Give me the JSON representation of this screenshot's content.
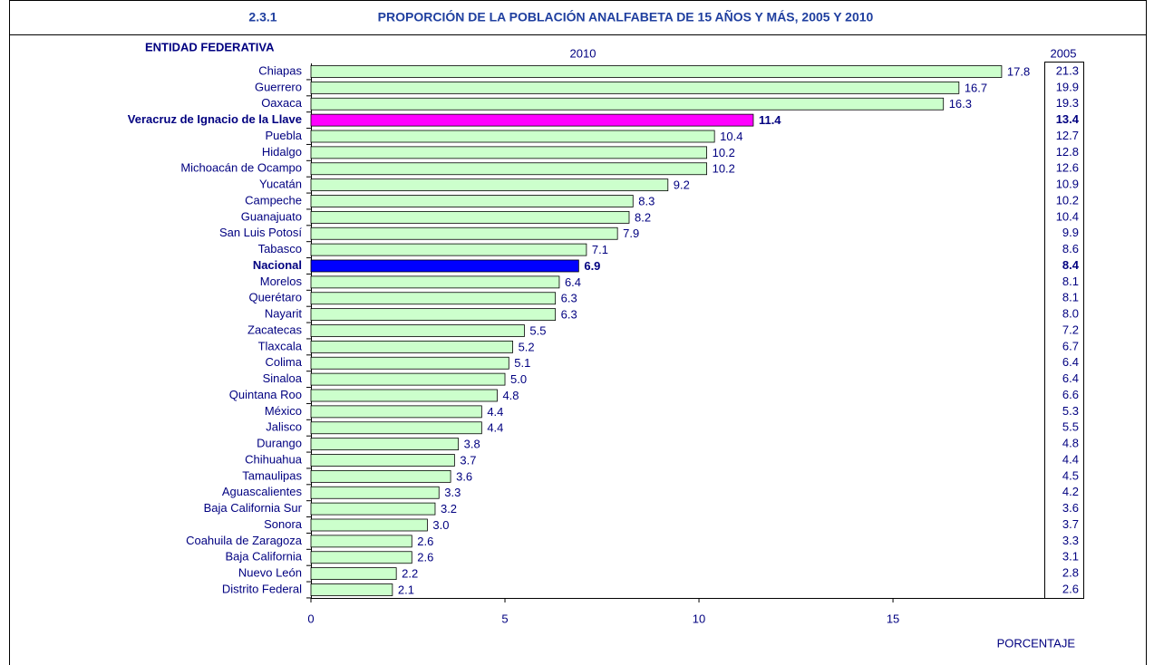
{
  "chart_data": {
    "type": "barh",
    "number": "2.3.1",
    "title": "PROPORCIÓN DE LA POBLACIÓN ANALFABETA DE 15 AÑOS Y MÁS, 2005 Y 2010",
    "ylabel": "ENTIDAD FEDERATIVA",
    "xlabel": "PORCENTAJE",
    "categories": [
      "Chiapas",
      "Guerrero",
      "Oaxaca",
      "Veracruz de Ignacio de la Llave",
      "Puebla",
      "Hidalgo",
      "Michoacán de Ocampo",
      "Yucatán",
      "Campeche",
      "Guanajuato",
      "San Luis Potosí",
      "Tabasco",
      "Nacional",
      "Morelos",
      "Querétaro",
      "Nayarit",
      "Zacatecas",
      "Tlaxcala",
      "Colima",
      "Sinaloa",
      "Quintana Roo",
      "México",
      "Jalisco",
      "Durango",
      "Chihuahua",
      "Tamaulipas",
      "Aguascalientes",
      "Baja California Sur",
      "Sonora",
      "Coahuila de Zaragoza",
      "Baja California",
      "Nuevo León",
      "Distrito Federal"
    ],
    "color": "#ccffcc",
    "colors": [
      "#ccffcc",
      "#ccffcc",
      "#ccffcc",
      "#ff00ff",
      "#ccffcc",
      "#ccffcc",
      "#ccffcc",
      "#ccffcc",
      "#ccffcc",
      "#ccffcc",
      "#ccffcc",
      "#ccffcc",
      "#0000ff",
      "#ccffcc",
      "#ccffcc",
      "#ccffcc",
      "#ccffcc",
      "#ccffcc",
      "#ccffcc",
      "#ccffcc",
      "#ccffcc",
      "#ccffcc",
      "#ccffcc",
      "#ccffcc",
      "#ccffcc",
      "#ccffcc",
      "#ccffcc",
      "#ccffcc",
      "#ccffcc",
      "#ccffcc",
      "#ccffcc",
      "#ccffcc",
      "#ccffcc"
    ],
    "series": [
      {
        "name": "2010",
        "values": [
          17.8,
          16.7,
          16.3,
          11.4,
          10.4,
          10.2,
          10.2,
          9.2,
          8.3,
          8.2,
          7.9,
          7.1,
          6.9,
          6.4,
          6.3,
          6.3,
          5.5,
          5.2,
          5.1,
          5.0,
          4.8,
          4.4,
          4.4,
          3.8,
          3.7,
          3.6,
          3.3,
          3.2,
          3.0,
          2.6,
          2.6,
          2.2,
          2.1
        ],
        "value_labels": [
          "17.8",
          "16.7",
          "16.3",
          "11.4",
          "10.4",
          "10.2",
          "10.2",
          "9.2",
          "8.3",
          "8.2",
          "7.9",
          "7.1",
          "6.9",
          "6.4",
          "6.3",
          "6.3",
          "5.5",
          "5.2",
          "5.1",
          "5.0",
          "4.8",
          "4.4",
          "4.4",
          "3.8",
          "3.7",
          "3.6",
          "3.3",
          "3.2",
          "3.0",
          "2.6",
          "2.6",
          "2.2",
          "2.1"
        ]
      },
      {
        "name": "2005",
        "values": [
          21.3,
          19.9,
          19.3,
          13.4,
          12.7,
          12.8,
          12.6,
          10.9,
          10.2,
          10.4,
          9.9,
          8.6,
          8.4,
          8.1,
          8.1,
          8.0,
          7.2,
          6.7,
          6.4,
          6.4,
          6.6,
          5.3,
          5.5,
          4.8,
          4.4,
          4.5,
          4.2,
          3.6,
          3.7,
          3.3,
          3.1,
          2.8,
          2.6
        ],
        "value_labels": [
          "21.3",
          "19.9",
          "19.3",
          "13.4",
          "12.7",
          "12.8",
          "12.6",
          "10.9",
          "10.2",
          "10.4",
          "9.9",
          "8.6",
          "8.4",
          "8.1",
          "8.1",
          "8.0",
          "7.2",
          "6.7",
          "6.4",
          "6.4",
          "6.6",
          "5.3",
          "5.5",
          "4.8",
          "4.4",
          "4.5",
          "4.2",
          "3.6",
          "3.7",
          "3.3",
          "3.1",
          "2.8",
          "2.6"
        ]
      }
    ],
    "xlim": [
      0,
      18.9
    ],
    "xticks": [
      0,
      5,
      10,
      15
    ]
  }
}
